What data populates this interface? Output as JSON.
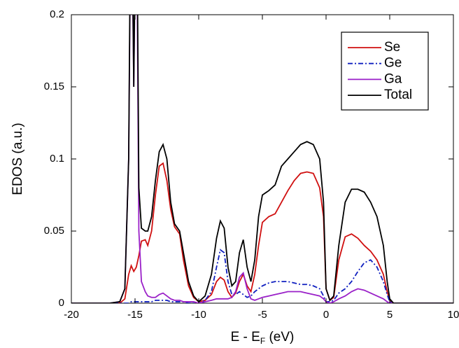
{
  "chart_data": {
    "type": "line",
    "x_label": [
      "E - E",
      "F",
      " (eV)"
    ],
    "y_label": "EDOS (a.u.)",
    "x": [
      -20,
      -17,
      -16.2,
      -15.8,
      -15.5,
      -15.3,
      -15.1,
      -14.9,
      -14.7,
      -14.5,
      -14.2,
      -14,
      -13.7,
      -13.4,
      -13.1,
      -12.8,
      -12.5,
      -12.2,
      -11.9,
      -11.5,
      -11.2,
      -10.8,
      -10.4,
      -10,
      -9.5,
      -9,
      -8.6,
      -8.3,
      -8,
      -7.7,
      -7.4,
      -7.1,
      -6.8,
      -6.5,
      -6.2,
      -5.9,
      -5.6,
      -5.3,
      -5,
      -4.5,
      -4,
      -3.5,
      -3,
      -2.5,
      -2,
      -1.5,
      -1,
      -0.5,
      -0.2,
      0,
      0.3,
      0.6,
      1,
      1.5,
      2,
      2.5,
      3,
      3.5,
      4,
      4.5,
      4.8,
      5,
      5.3,
      6,
      10
    ],
    "series": [
      {
        "name": "Se",
        "color": "#d01010",
        "line_style": "solid",
        "values": [
          0,
          0,
          0,
          0.003,
          0.02,
          0.026,
          0.022,
          0.025,
          0.033,
          0.043,
          0.044,
          0.04,
          0.05,
          0.075,
          0.095,
          0.097,
          0.085,
          0.065,
          0.053,
          0.048,
          0.03,
          0.012,
          0.004,
          0.001,
          0.002,
          0.006,
          0.015,
          0.018,
          0.016,
          0.008,
          0.004,
          0.007,
          0.015,
          0.02,
          0.012,
          0.008,
          0.02,
          0.04,
          0.056,
          0.06,
          0.062,
          0.07,
          0.078,
          0.085,
          0.09,
          0.091,
          0.09,
          0.08,
          0.06,
          0.01,
          0.002,
          0.004,
          0.03,
          0.046,
          0.048,
          0.045,
          0.04,
          0.036,
          0.03,
          0.02,
          0.008,
          0.002,
          0,
          0,
          0
        ]
      },
      {
        "name": "Ge",
        "color": "#1020c0",
        "line_style": "dashdot",
        "values": [
          0,
          0,
          0,
          0,
          0,
          0.001,
          0.001,
          0.001,
          0.001,
          0.001,
          0.001,
          0.001,
          0.001,
          0.002,
          0.002,
          0.002,
          0.002,
          0.001,
          0.001,
          0.001,
          0.001,
          0,
          0,
          0,
          0.002,
          0.008,
          0.025,
          0.037,
          0.035,
          0.015,
          0.006,
          0.006,
          0.008,
          0.006,
          0.004,
          0.005,
          0.008,
          0.01,
          0.012,
          0.014,
          0.015,
          0.015,
          0.015,
          0.014,
          0.013,
          0.013,
          0.012,
          0.01,
          0.005,
          0.001,
          0.001,
          0.002,
          0.007,
          0.01,
          0.015,
          0.022,
          0.028,
          0.03,
          0.025,
          0.015,
          0.006,
          0.001,
          0,
          0,
          0
        ]
      },
      {
        "name": "Ga",
        "color": "#9a20c8",
        "line_style": "solid",
        "values": [
          0,
          0,
          0.001,
          0.01,
          0.1,
          0.3,
          0.15,
          0.3,
          0.05,
          0.015,
          0.008,
          0.005,
          0.004,
          0.004,
          0.006,
          0.007,
          0.005,
          0.003,
          0.002,
          0.002,
          0.001,
          0.001,
          0.001,
          0,
          0.001,
          0.002,
          0.003,
          0.003,
          0.003,
          0.003,
          0.004,
          0.008,
          0.018,
          0.021,
          0.01,
          0.003,
          0.002,
          0.003,
          0.004,
          0.005,
          0.006,
          0.007,
          0.008,
          0.008,
          0.008,
          0.007,
          0.006,
          0.005,
          0.003,
          0.001,
          0,
          0.001,
          0.003,
          0.005,
          0.008,
          0.01,
          0.009,
          0.007,
          0.005,
          0.003,
          0.001,
          0,
          0,
          0,
          0
        ]
      },
      {
        "name": "Total",
        "color": "#000000",
        "line_style": "solid",
        "values": [
          0,
          0,
          0.001,
          0.01,
          0.1,
          0.33,
          0.15,
          0.33,
          0.08,
          0.052,
          0.05,
          0.05,
          0.06,
          0.085,
          0.105,
          0.11,
          0.1,
          0.07,
          0.055,
          0.05,
          0.035,
          0.015,
          0.005,
          0.001,
          0.005,
          0.02,
          0.045,
          0.057,
          0.052,
          0.025,
          0.012,
          0.015,
          0.035,
          0.044,
          0.025,
          0.015,
          0.03,
          0.06,
          0.075,
          0.078,
          0.082,
          0.095,
          0.1,
          0.105,
          0.11,
          0.112,
          0.11,
          0.1,
          0.07,
          0.01,
          0.002,
          0.005,
          0.04,
          0.07,
          0.079,
          0.079,
          0.077,
          0.07,
          0.06,
          0.04,
          0.015,
          0.003,
          0,
          0,
          0
        ]
      }
    ],
    "xlim": [
      -20,
      10
    ],
    "xticks": [
      -20,
      -15,
      -10,
      -5,
      0,
      5,
      10
    ],
    "ylim": [
      0,
      0.2
    ],
    "yticks": [
      0,
      0.05,
      0.1,
      0.15,
      0.2
    ],
    "legend": "upper right"
  }
}
